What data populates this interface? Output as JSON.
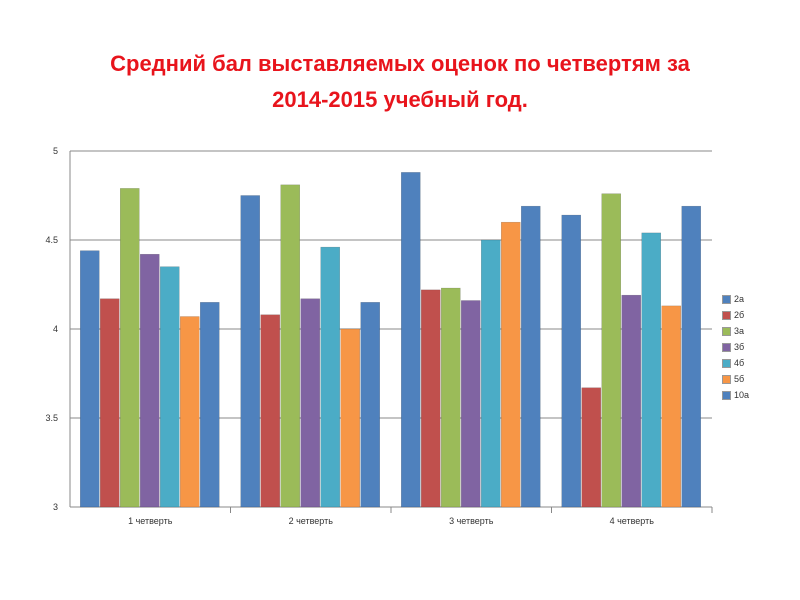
{
  "chart_data": {
    "type": "bar",
    "title_line1": "Средний бал выставляемых оценок по четвертям за",
    "title_line2": "2014-2015 учебный год.",
    "categories": [
      "1 четверть",
      "2 четверть",
      "3 четверть",
      "4 четверть"
    ],
    "ylim": [
      3,
      5
    ],
    "yticks": [
      "3",
      "3.5",
      "4",
      "4.5",
      "5"
    ],
    "grid": true,
    "legend_position": "right",
    "series": [
      {
        "name": "2а",
        "color": "#4f81bd",
        "values": [
          4.44,
          4.75,
          4.88,
          4.64
        ]
      },
      {
        "name": "2б",
        "color": "#c0504d",
        "values": [
          4.17,
          4.08,
          4.22,
          3.67
        ]
      },
      {
        "name": "3а",
        "color": "#9bbb59",
        "values": [
          4.79,
          4.81,
          4.23,
          4.76
        ]
      },
      {
        "name": "3б",
        "color": "#8064a2",
        "values": [
          4.42,
          4.17,
          4.16,
          4.19
        ]
      },
      {
        "name": "4б",
        "color": "#4bacc6",
        "values": [
          4.35,
          4.46,
          4.5,
          4.54
        ]
      },
      {
        "name": "5б",
        "color": "#f79646",
        "values": [
          4.07,
          4.0,
          4.6,
          4.13
        ]
      },
      {
        "name": "10а",
        "color": "#4f81bd",
        "values": [
          4.15,
          4.15,
          4.69,
          4.69
        ]
      }
    ]
  }
}
